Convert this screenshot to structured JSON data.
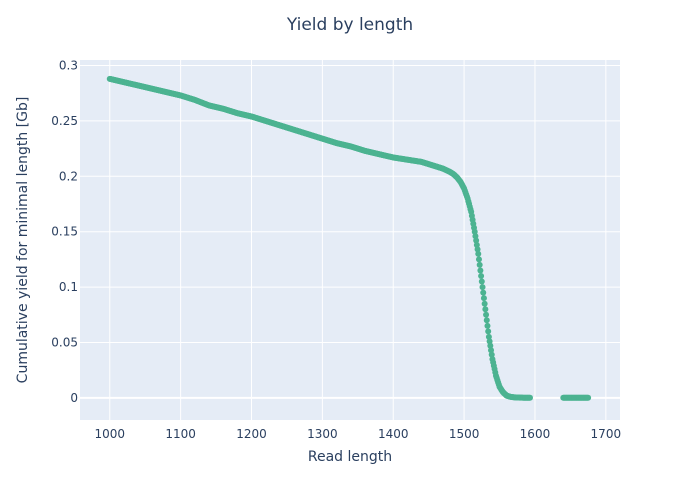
{
  "chart_data": {
    "type": "scatter",
    "title": "Yield by length",
    "xlabel": "Read length",
    "ylabel": "Cumulative yield for minimal length [Gb]",
    "xlim": [
      958,
      1720
    ],
    "ylim": [
      -0.02,
      0.305
    ],
    "x_ticks": [
      1000,
      1100,
      1200,
      1300,
      1400,
      1500,
      1600,
      1700
    ],
    "y_ticks": [
      0,
      0.05,
      0.1,
      0.15,
      0.2,
      0.25,
      0.3
    ],
    "y_tick_labels": [
      "0",
      "0.05",
      "0.1",
      "0.15",
      "0.2",
      "0.25",
      "0.3"
    ],
    "grid": true,
    "marker_color": "#4cb391",
    "plot_background": "#e5ecf6",
    "grid_color": "#ffffff",
    "series": [
      {
        "x": [
          1000,
          1020,
          1040,
          1060,
          1080,
          1100,
          1120,
          1140,
          1160,
          1180,
          1200,
          1220,
          1240,
          1260,
          1280,
          1300,
          1320,
          1340,
          1360,
          1380,
          1400,
          1420,
          1440,
          1450,
          1460,
          1470,
          1480,
          1485,
          1490,
          1495,
          1500,
          1505,
          1510,
          1515,
          1520,
          1525,
          1530,
          1535,
          1540,
          1545,
          1550,
          1555,
          1560,
          1565,
          1570,
          1575,
          1580,
          1585,
          1590,
          1593,
          1640,
          1645,
          1650,
          1655,
          1660,
          1665,
          1670,
          1675
        ],
        "y": [
          0.288,
          0.285,
          0.282,
          0.279,
          0.276,
          0.273,
          0.269,
          0.264,
          0.261,
          0.257,
          0.254,
          0.25,
          0.246,
          0.242,
          0.238,
          0.234,
          0.23,
          0.227,
          0.223,
          0.22,
          0.217,
          0.215,
          0.213,
          0.211,
          0.209,
          0.207,
          0.204,
          0.202,
          0.199,
          0.195,
          0.189,
          0.18,
          0.168,
          0.15,
          0.13,
          0.105,
          0.08,
          0.055,
          0.035,
          0.02,
          0.01,
          0.005,
          0.002,
          0.001,
          0.0005,
          0.0003,
          0.0002,
          0.0001,
          0.0001,
          0.0001,
          0.0001,
          0.0001,
          0.0001,
          0.0001,
          0.0001,
          0.0001,
          0.0001,
          0.0001
        ]
      }
    ]
  }
}
